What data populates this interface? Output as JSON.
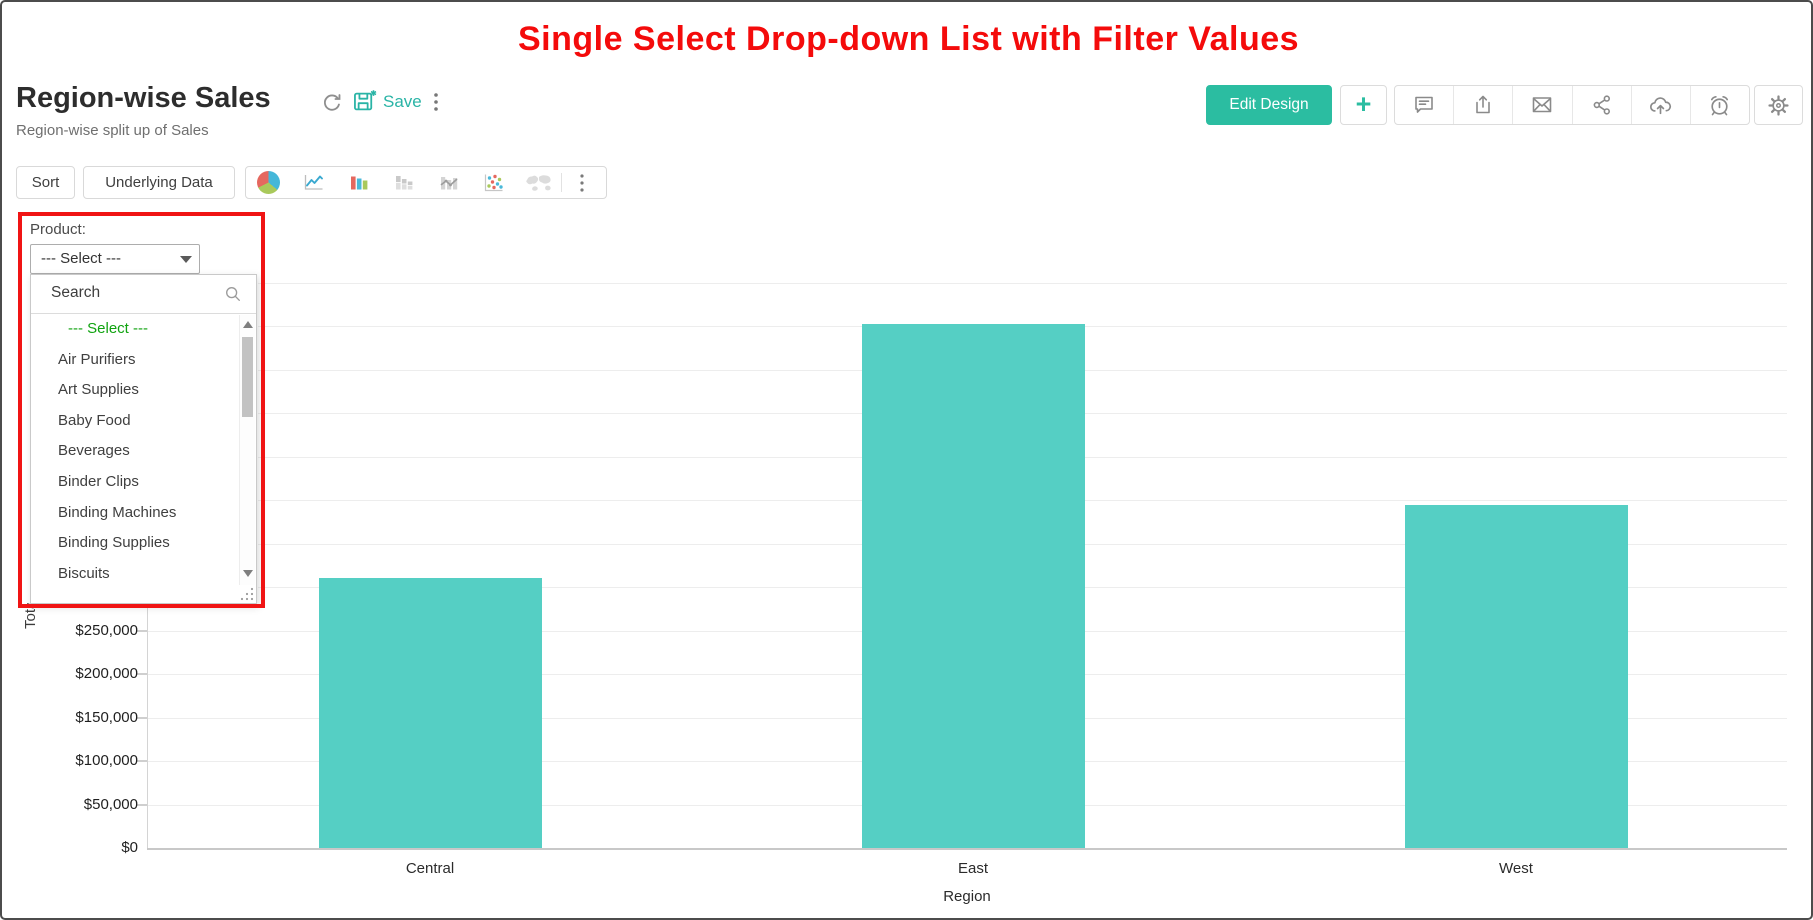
{
  "annotation": {
    "title": "Single Select Drop-down List with Filter Values",
    "title_color": "#f40b0b",
    "box_color": "#f01414"
  },
  "header": {
    "title": "Region-wise Sales",
    "subtitle": "Region-wise split up of Sales",
    "save_label": "Save",
    "accent_color": "#2ab4a6",
    "icons": [
      "refresh-icon",
      "save-icon",
      "more-vertical-icon"
    ]
  },
  "actions": {
    "edit_design_label": "Edit Design",
    "plus_label": "+",
    "button_color": "#2bbda1",
    "icon_buttons": [
      "comment-icon",
      "export-icon",
      "mail-icon",
      "share-icon",
      "cloud-upload-icon",
      "alarm-icon",
      "settings-icon"
    ]
  },
  "toolbar": {
    "sort_label": "Sort",
    "underlying_data_label": "Underlying Data",
    "chart_type_icons": [
      "pie-chart-icon",
      "line-chart-icon",
      "bar-chart-icon",
      "stacked-bar-chart-icon",
      "combo-chart-icon",
      "scatter-plot-icon",
      "map-chart-icon",
      "more-vertical-icon"
    ]
  },
  "filter": {
    "label": "Product:",
    "selected_value": "--- Select ---",
    "search_placeholder": "Search",
    "options": [
      "--- Select ---",
      "Air Purifiers",
      "Art Supplies",
      "Baby Food",
      "Beverages",
      "Binder Clips",
      "Binding Machines",
      "Binding Supplies",
      "Biscuits"
    ],
    "selected_option_index": 0,
    "selected_option_color": "#10a310"
  },
  "chart_data": {
    "type": "bar",
    "categories": [
      "Central",
      "East",
      "West"
    ],
    "values": [
      310000,
      602000,
      394000
    ],
    "title": "",
    "xlabel": "Region",
    "ylabel": "Total Sales",
    "ylim": [
      0,
      650000
    ],
    "ytick_step": 50000,
    "ytick_prefix": "$",
    "bar_color": "#55cfc4",
    "grid": true,
    "legend": false,
    "visible_ytick_labels": [
      "$0",
      "$50,000",
      "$100,000",
      "$150,000",
      "$200,000",
      "$250,000"
    ]
  }
}
